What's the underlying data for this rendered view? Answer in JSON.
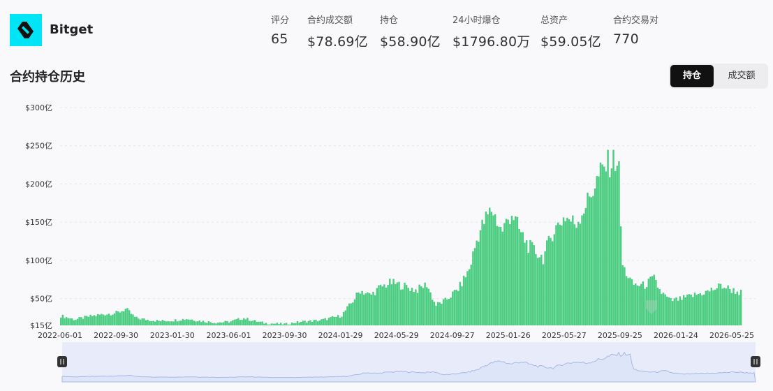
{
  "exchange": {
    "name": "Bitget",
    "logo_icon": "bitget-logo-icon"
  },
  "stats": [
    {
      "label": "评分",
      "value": "65"
    },
    {
      "label": "合约成交额",
      "value": "$78.69亿"
    },
    {
      "label": "持仓",
      "value": "$58.90亿"
    },
    {
      "label": "24小时爆仓",
      "value": "$1796.80万"
    },
    {
      "label": "总资产",
      "value": "$59.05亿"
    },
    {
      "label": "合约交易对",
      "value": "770"
    }
  ],
  "section": {
    "title": "合约持仓历史"
  },
  "toggle": {
    "open_interest_label": "持仓",
    "volume_label": "成交额",
    "selected": "持仓"
  },
  "colors": {
    "bar": "#4ccd82",
    "accent_cyan": "#00e5f5",
    "navigator_fill": "#dde5f8"
  },
  "chart_data": {
    "type": "bar",
    "title": "",
    "xlabel": "",
    "ylabel": "",
    "unit": "亿 USD",
    "ylim": [
      15,
      300
    ],
    "y_tick_labels": [
      "$15亿",
      "$50亿",
      "$100亿",
      "$150亿",
      "$200亿",
      "$250亿",
      "$300亿"
    ],
    "y_tick_values": [
      15,
      50,
      100,
      150,
      200,
      250,
      300
    ],
    "x_tick_labels": [
      "2022-06-01",
      "2022-09-30",
      "2023-01-30",
      "2023-06-01",
      "2023-09-30",
      "2024-01-29",
      "2024-05-29",
      "2024-09-27",
      "2025-01-26",
      "2025-05-27",
      "2025-09-25",
      "2026-01-24",
      "2026-05-25"
    ],
    "grid": true,
    "legend": "none",
    "series": [
      {
        "values_by_date": [
          [
            "2022-06-01",
            28
          ],
          [
            "2022-07-01",
            23
          ],
          [
            "2022-08-01",
            27
          ],
          [
            "2022-09-01",
            30
          ],
          [
            "2022-10-01",
            32
          ],
          [
            "2022-10-20",
            37
          ],
          [
            "2022-11-10",
            25
          ],
          [
            "2022-12-01",
            23
          ],
          [
            "2023-01-01",
            21
          ],
          [
            "2023-02-01",
            22
          ],
          [
            "2023-03-01",
            24
          ],
          [
            "2023-04-01",
            21
          ],
          [
            "2023-05-01",
            19
          ],
          [
            "2023-06-01",
            20
          ],
          [
            "2023-07-01",
            25
          ],
          [
            "2023-08-01",
            20
          ],
          [
            "2023-08-20",
            18
          ],
          [
            "2023-09-30",
            17
          ],
          [
            "2023-11-01",
            20
          ],
          [
            "2023-12-15",
            22
          ],
          [
            "2024-01-29",
            28
          ],
          [
            "2024-02-20",
            45
          ],
          [
            "2024-03-10",
            62
          ],
          [
            "2024-04-01",
            55
          ],
          [
            "2024-04-20",
            65
          ],
          [
            "2024-05-15",
            72
          ],
          [
            "2024-06-10",
            68
          ],
          [
            "2024-07-10",
            62
          ],
          [
            "2024-08-01",
            70
          ],
          [
            "2024-08-20",
            42
          ],
          [
            "2024-09-10",
            48
          ],
          [
            "2024-10-10",
            65
          ],
          [
            "2024-11-01",
            90
          ],
          [
            "2024-11-20",
            135
          ],
          [
            "2024-12-05",
            155
          ],
          [
            "2024-12-20",
            170
          ],
          [
            "2025-01-10",
            140
          ],
          [
            "2025-02-01",
            165
          ],
          [
            "2025-02-20",
            138
          ],
          [
            "2025-03-10",
            120
          ],
          [
            "2025-04-10",
            105
          ],
          [
            "2025-05-01",
            140
          ],
          [
            "2025-05-27",
            160
          ],
          [
            "2025-06-20",
            150
          ],
          [
            "2025-07-15",
            180
          ],
          [
            "2025-08-10",
            215
          ],
          [
            "2025-08-25",
            228
          ],
          [
            "2025-09-05",
            232
          ],
          [
            "2025-09-20",
            236
          ],
          [
            "2025-09-28",
            95
          ],
          [
            "2025-10-20",
            70
          ],
          [
            "2025-11-15",
            68
          ],
          [
            "2025-12-05",
            78
          ],
          [
            "2025-12-20",
            60
          ],
          [
            "2026-01-10",
            48
          ],
          [
            "2026-02-01",
            50
          ],
          [
            "2026-03-01",
            55
          ],
          [
            "2026-04-01",
            60
          ],
          [
            "2026-05-01",
            68
          ],
          [
            "2026-05-25",
            62
          ],
          [
            "2026-06-15",
            58
          ]
        ]
      }
    ]
  }
}
